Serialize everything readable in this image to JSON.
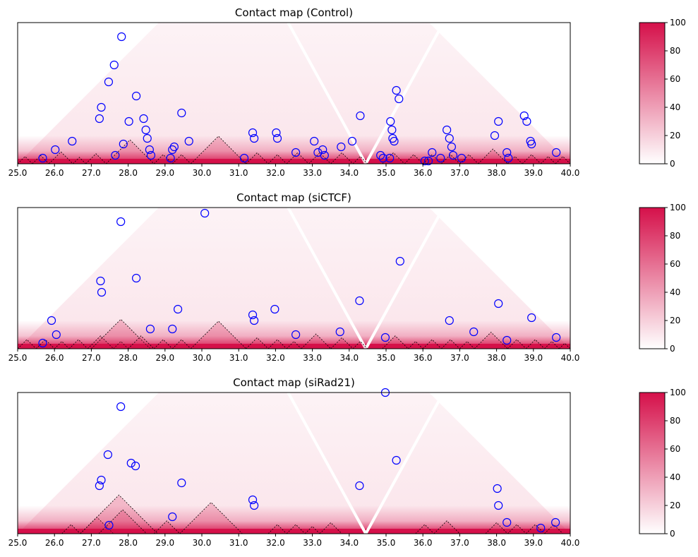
{
  "chart_data": [
    {
      "type": "heatmap",
      "title": "Contact map (Control)",
      "xlim": [
        25.0,
        40.0
      ],
      "xticks": [
        "25.0",
        "26.0",
        "27.0",
        "28.0",
        "29.0",
        "30.0",
        "31.0",
        "32.0",
        "33.0",
        "34.0",
        "35.0",
        "36.0",
        "37.0",
        "38.0",
        "39.0",
        "40.0"
      ],
      "colorbar": {
        "range": [
          0,
          100
        ],
        "ticks": [
          "0",
          "20",
          "40",
          "60",
          "80",
          "100"
        ]
      },
      "colors": {
        "low": "#ffffff",
        "high": "#d5104a",
        "circle": "#0000ff",
        "tad_line": "#000000"
      },
      "tads": [
        [
          25.0,
          25.4
        ],
        [
          25.4,
          25.85
        ],
        [
          25.85,
          26.5
        ],
        [
          26.5,
          26.85
        ],
        [
          26.85,
          27.4
        ],
        [
          27.4,
          28.7
        ],
        [
          28.7,
          29.2
        ],
        [
          29.2,
          29.7
        ],
        [
          29.7,
          31.2
        ],
        [
          31.2,
          31.8
        ],
        [
          31.8,
          32.3
        ],
        [
          32.3,
          32.9
        ],
        [
          32.9,
          33.5
        ],
        [
          33.5,
          34.1
        ],
        [
          34.1,
          34.5
        ],
        [
          34.9,
          35.5
        ],
        [
          35.5,
          36.0
        ],
        [
          36.0,
          36.5
        ],
        [
          36.5,
          37.0
        ],
        [
          37.0,
          37.5
        ],
        [
          37.5,
          38.3
        ],
        [
          38.3,
          38.7
        ],
        [
          38.7,
          39.2
        ],
        [
          39.2,
          39.6
        ],
        [
          39.6,
          40.0
        ]
      ],
      "circles": [
        [
          25.68,
          2
        ],
        [
          26.02,
          5
        ],
        [
          26.48,
          8
        ],
        [
          27.22,
          16
        ],
        [
          27.27,
          20
        ],
        [
          27.47,
          29
        ],
        [
          27.62,
          35
        ],
        [
          27.82,
          45
        ],
        [
          27.65,
          3
        ],
        [
          27.87,
          7
        ],
        [
          28.02,
          15
        ],
        [
          28.22,
          24
        ],
        [
          28.42,
          16
        ],
        [
          28.48,
          12
        ],
        [
          28.52,
          9
        ],
        [
          28.58,
          5
        ],
        [
          28.62,
          3
        ],
        [
          29.2,
          5
        ],
        [
          29.25,
          6
        ],
        [
          29.45,
          18
        ],
        [
          29.65,
          8
        ],
        [
          29.15,
          2
        ],
        [
          31.15,
          2
        ],
        [
          31.38,
          11
        ],
        [
          31.42,
          9
        ],
        [
          32.02,
          11
        ],
        [
          32.05,
          9
        ],
        [
          32.55,
          4
        ],
        [
          33.05,
          8
        ],
        [
          33.15,
          4
        ],
        [
          33.28,
          5
        ],
        [
          33.33,
          3
        ],
        [
          33.78,
          6
        ],
        [
          34.08,
          8
        ],
        [
          34.3,
          17
        ],
        [
          34.85,
          3
        ],
        [
          34.92,
          2
        ],
        [
          35.12,
          15
        ],
        [
          35.16,
          12
        ],
        [
          35.18,
          9
        ],
        [
          35.22,
          8
        ],
        [
          35.1,
          2
        ],
        [
          35.28,
          26
        ],
        [
          35.35,
          23
        ],
        [
          36.05,
          1
        ],
        [
          36.15,
          1
        ],
        [
          36.25,
          4
        ],
        [
          36.48,
          2
        ],
        [
          36.65,
          12
        ],
        [
          36.72,
          9
        ],
        [
          36.78,
          6
        ],
        [
          36.82,
          3
        ],
        [
          37.05,
          2
        ],
        [
          37.95,
          10
        ],
        [
          38.05,
          15
        ],
        [
          38.28,
          4
        ],
        [
          38.32,
          2
        ],
        [
          38.75,
          17
        ],
        [
          38.82,
          15
        ],
        [
          38.92,
          8
        ],
        [
          38.95,
          7
        ],
        [
          39.62,
          4
        ]
      ]
    },
    {
      "type": "heatmap",
      "title": "Contact map (siCTCF)",
      "xlim": [
        25.0,
        40.0
      ],
      "xticks": [
        "25.0",
        "26.0",
        "27.0",
        "28.0",
        "29.0",
        "30.0",
        "31.0",
        "32.0",
        "33.0",
        "34.0",
        "35.0",
        "36.0",
        "37.0",
        "38.0",
        "39.0",
        "40.0"
      ],
      "colorbar": {
        "range": [
          0,
          100
        ],
        "ticks": [
          "0",
          "20",
          "40",
          "60",
          "80",
          "100"
        ]
      },
      "colors": {
        "low": "#ffffff",
        "high": "#d5104a",
        "circle": "#0000ff",
        "tad_line": "#000000"
      },
      "tads": [
        [
          25.0,
          25.5
        ],
        [
          25.5,
          26.0
        ],
        [
          26.0,
          26.4
        ],
        [
          26.4,
          26.9
        ],
        [
          26.9,
          27.6
        ],
        [
          27.6,
          28.0
        ],
        [
          27.0,
          28.6
        ],
        [
          28.0,
          28.7
        ],
        [
          28.7,
          29.2
        ],
        [
          29.2,
          29.7
        ],
        [
          29.7,
          31.2
        ],
        [
          31.2,
          31.8
        ],
        [
          31.8,
          32.3
        ],
        [
          32.3,
          32.7
        ],
        [
          32.7,
          33.5
        ],
        [
          33.5,
          34.1
        ],
        [
          34.1,
          34.5
        ],
        [
          34.9,
          35.6
        ],
        [
          35.6,
          36.0
        ],
        [
          36.0,
          36.5
        ],
        [
          36.5,
          37.0
        ],
        [
          37.0,
          37.4
        ],
        [
          37.4,
          38.3
        ],
        [
          38.3,
          38.8
        ],
        [
          38.8,
          39.3
        ],
        [
          39.3,
          39.7
        ],
        [
          39.7,
          40.0
        ]
      ],
      "circles": [
        [
          25.68,
          2
        ],
        [
          25.92,
          10
        ],
        [
          26.05,
          5
        ],
        [
          27.25,
          24
        ],
        [
          27.28,
          20
        ],
        [
          27.8,
          45
        ],
        [
          28.22,
          25
        ],
        [
          28.6,
          7
        ],
        [
          29.2,
          7
        ],
        [
          29.35,
          14
        ],
        [
          30.08,
          48
        ],
        [
          31.38,
          12
        ],
        [
          31.42,
          10
        ],
        [
          31.98,
          14
        ],
        [
          32.55,
          5
        ],
        [
          33.75,
          6
        ],
        [
          34.28,
          17
        ],
        [
          34.98,
          4
        ],
        [
          35.38,
          31
        ],
        [
          36.72,
          10
        ],
        [
          37.38,
          6
        ],
        [
          38.05,
          16
        ],
        [
          38.28,
          3
        ],
        [
          38.95,
          11
        ],
        [
          39.62,
          4
        ]
      ]
    },
    {
      "type": "heatmap",
      "title": "Contact map (siRad21)",
      "xlim": [
        25.0,
        40.0
      ],
      "xticks": [
        "25.0",
        "26.0",
        "27.0",
        "28.0",
        "29.0",
        "30.0",
        "31.0",
        "32.0",
        "33.0",
        "34.0",
        "35.0",
        "36.0",
        "37.0",
        "38.0",
        "39.0",
        "40.0"
      ],
      "colorbar": {
        "range": [
          0,
          100
        ],
        "ticks": [
          "0",
          "20",
          "40",
          "60",
          "80",
          "100"
        ]
      },
      "colors": {
        "low": "#ffffff",
        "high": "#d5104a",
        "circle": "#0000ff",
        "tad_line": "#000000"
      },
      "tads": [
        [
          26.2,
          26.7
        ],
        [
          26.7,
          27.6
        ],
        [
          26.7,
          28.8
        ],
        [
          27.2,
          28.5
        ],
        [
          28.7,
          29.4
        ],
        [
          29.4,
          31.1
        ],
        [
          31.8,
          32.3
        ],
        [
          32.3,
          32.8
        ],
        [
          32.8,
          33.2
        ],
        [
          33.2,
          33.8
        ],
        [
          35.8,
          36.3
        ],
        [
          36.3,
          37.0
        ],
        [
          37.7,
          38.3
        ],
        [
          38.3,
          38.8
        ],
        [
          38.8,
          39.3
        ],
        [
          39.3,
          39.8
        ]
      ],
      "circles": [
        [
          27.22,
          17
        ],
        [
          27.27,
          19
        ],
        [
          27.45,
          28
        ],
        [
          27.48,
          3
        ],
        [
          27.8,
          45
        ],
        [
          28.08,
          25
        ],
        [
          28.2,
          24
        ],
        [
          29.2,
          6
        ],
        [
          29.45,
          18
        ],
        [
          31.38,
          12
        ],
        [
          31.42,
          10
        ],
        [
          34.28,
          17
        ],
        [
          34.98,
          50
        ],
        [
          35.28,
          26
        ],
        [
          38.02,
          16
        ],
        [
          38.05,
          10
        ],
        [
          38.28,
          4
        ],
        [
          39.2,
          2
        ],
        [
          39.6,
          4
        ]
      ]
    }
  ]
}
